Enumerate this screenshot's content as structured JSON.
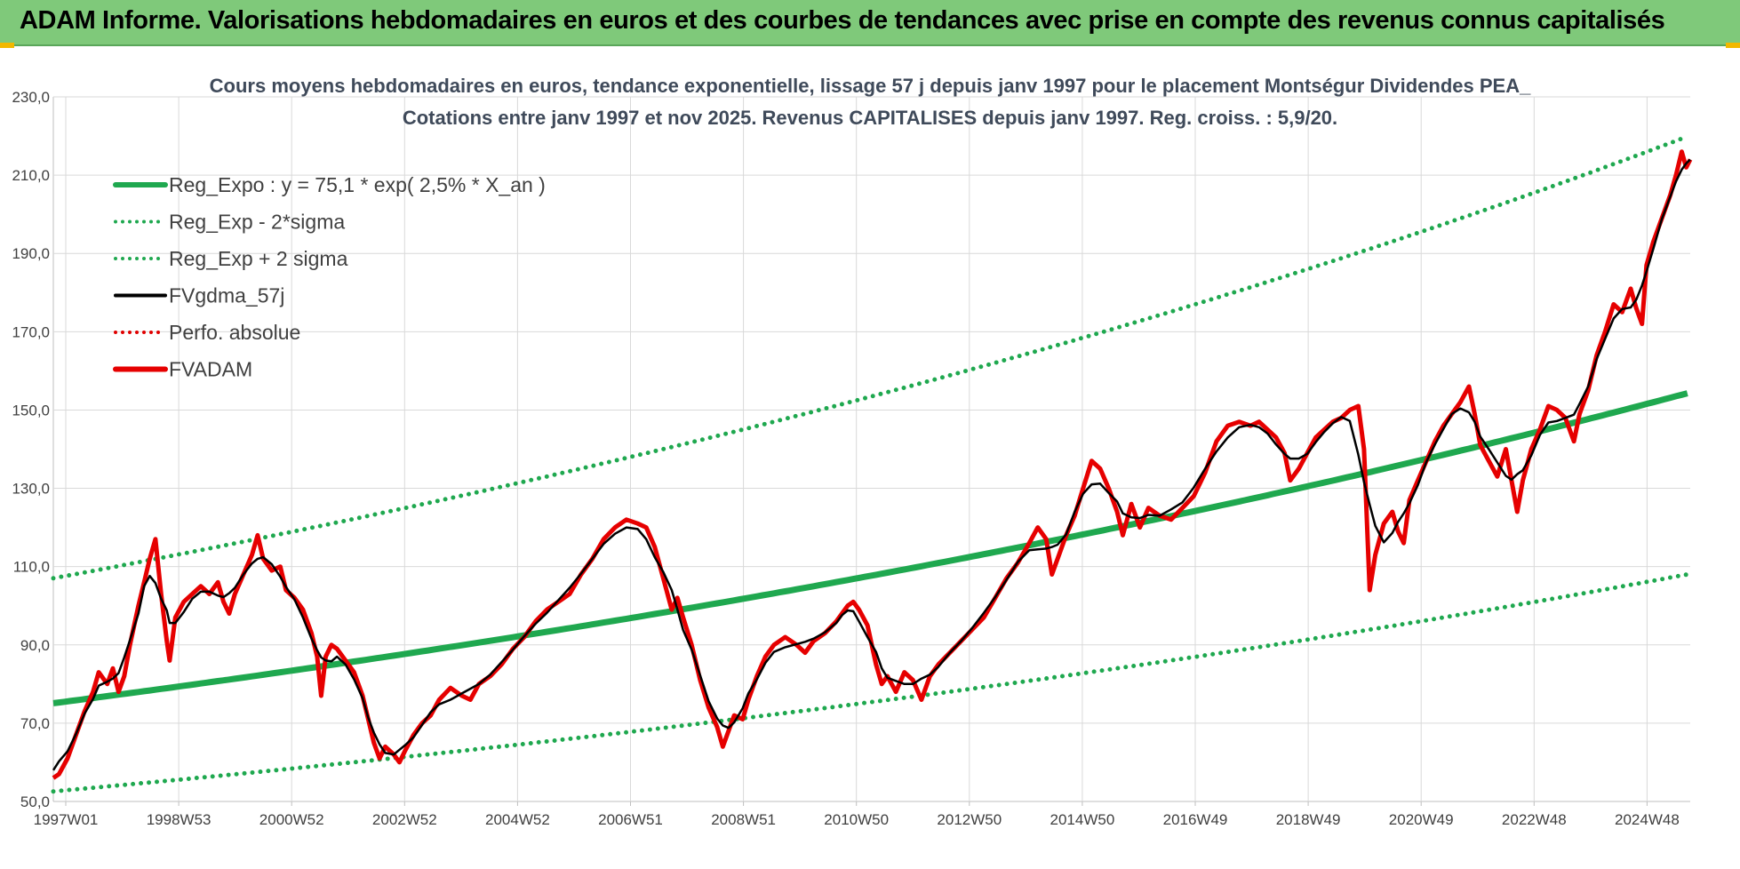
{
  "banner": {
    "title": "ADAM Informe. Valorisations hebdomadaires en euros et des courbes de tendances avec prise en compte des revenus connus capitalisés"
  },
  "chart_data": {
    "type": "line",
    "title": "Cours moyens hebdomadaires en euros, tendance exponentielle, lissage 57 j depuis janv 1997 pour le placement Montségur Dividendes PEA_",
    "subtitle": "Cotations entre janv 1997 et nov 2025. Revenus CAPITALISES depuis janv 1997. Reg. croiss. : 5,9/20.",
    "xlabel": "",
    "ylabel": "",
    "ylim": [
      50,
      230
    ],
    "yticks": [
      "50,0",
      "70,0",
      "90,0",
      "110,0",
      "130,0",
      "150,0",
      "170,0",
      "190,0",
      "210,0",
      "230,0"
    ],
    "xticks": [
      "1997W01",
      "1998W53",
      "2000W52",
      "2002W52",
      "2004W52",
      "2006W51",
      "2008W51",
      "2010W50",
      "2012W50",
      "2014W50",
      "2016W49",
      "2018W49",
      "2020W49",
      "2022W48",
      "2024W48"
    ],
    "xlim_years": [
      1997.0,
      2025.85
    ],
    "grid": true,
    "legend_position": "top-left",
    "series": [
      {
        "name": "Reg_Expo : y = 75,1 * exp( 2,5% *  X_an )",
        "color": "#1fa84f",
        "style": "solid-thick"
      },
      {
        "name": "Reg_Exp - 2*sigma",
        "color": "#1fa84f",
        "style": "dotted"
      },
      {
        "name": "Reg_Exp + 2 sigma",
        "color": "#1fa84f",
        "style": "dotted"
      },
      {
        "name": "FVgdma_57j",
        "color": "#000000",
        "style": "solid"
      },
      {
        "name": "Perfo. absolue",
        "color": "#e00000",
        "style": "dotted"
      },
      {
        "name": "FVADAM",
        "color": "#e60000",
        "style": "solid-thick"
      }
    ],
    "trend": {
      "a": 75.1,
      "rate": 0.025,
      "lower_factor": 0.7,
      "upper_factor": 1.425
    },
    "fvadam_points": [
      [
        1997.0,
        56
      ],
      [
        1997.1,
        57
      ],
      [
        1997.25,
        61
      ],
      [
        1997.4,
        67
      ],
      [
        1997.55,
        73
      ],
      [
        1997.7,
        78
      ],
      [
        1997.8,
        83
      ],
      [
        1997.95,
        80
      ],
      [
        1998.05,
        84
      ],
      [
        1998.15,
        78
      ],
      [
        1998.25,
        82
      ],
      [
        1998.35,
        90
      ],
      [
        1998.5,
        100
      ],
      [
        1998.6,
        106
      ],
      [
        1998.7,
        112
      ],
      [
        1998.8,
        117
      ],
      [
        1998.9,
        103
      ],
      [
        1999.0,
        91
      ],
      [
        1999.05,
        86
      ],
      [
        1999.15,
        97
      ],
      [
        1999.3,
        101
      ],
      [
        1999.45,
        103
      ],
      [
        1999.6,
        105
      ],
      [
        1999.75,
        103
      ],
      [
        1999.9,
        106
      ],
      [
        2000.0,
        101
      ],
      [
        2000.1,
        98
      ],
      [
        2000.2,
        103
      ],
      [
        2000.35,
        108
      ],
      [
        2000.5,
        113
      ],
      [
        2000.6,
        118
      ],
      [
        2000.7,
        112
      ],
      [
        2000.85,
        109
      ],
      [
        2001.0,
        110
      ],
      [
        2001.1,
        104
      ],
      [
        2001.25,
        102
      ],
      [
        2001.4,
        99
      ],
      [
        2001.55,
        93
      ],
      [
        2001.65,
        87
      ],
      [
        2001.72,
        77
      ],
      [
        2001.8,
        87
      ],
      [
        2001.9,
        90
      ],
      [
        2002.0,
        89
      ],
      [
        2002.15,
        86
      ],
      [
        2002.3,
        83
      ],
      [
        2002.45,
        77
      ],
      [
        2002.55,
        71
      ],
      [
        2002.65,
        65
      ],
      [
        2002.75,
        61
      ],
      [
        2002.85,
        64
      ],
      [
        2003.0,
        62
      ],
      [
        2003.1,
        60
      ],
      [
        2003.2,
        63
      ],
      [
        2003.35,
        67
      ],
      [
        2003.5,
        70
      ],
      [
        2003.65,
        72
      ],
      [
        2003.8,
        76
      ],
      [
        2004.0,
        79
      ],
      [
        2004.2,
        77
      ],
      [
        2004.35,
        76
      ],
      [
        2004.5,
        80
      ],
      [
        2004.7,
        82
      ],
      [
        2004.9,
        85
      ],
      [
        2005.1,
        89
      ],
      [
        2005.3,
        92
      ],
      [
        2005.5,
        96
      ],
      [
        2005.7,
        99
      ],
      [
        2005.9,
        101
      ],
      [
        2006.1,
        103
      ],
      [
        2006.3,
        108
      ],
      [
        2006.5,
        112
      ],
      [
        2006.7,
        117
      ],
      [
        2006.9,
        120
      ],
      [
        2007.1,
        122
      ],
      [
        2007.3,
        121
      ],
      [
        2007.45,
        120
      ],
      [
        2007.6,
        115
      ],
      [
        2007.75,
        107
      ],
      [
        2007.9,
        99
      ],
      [
        2008.0,
        102
      ],
      [
        2008.1,
        97
      ],
      [
        2008.25,
        90
      ],
      [
        2008.4,
        81
      ],
      [
        2008.55,
        74
      ],
      [
        2008.7,
        69
      ],
      [
        2008.8,
        64
      ],
      [
        2008.9,
        68
      ],
      [
        2009.0,
        72
      ],
      [
        2009.15,
        71
      ],
      [
        2009.25,
        76
      ],
      [
        2009.4,
        82
      ],
      [
        2009.55,
        87
      ],
      [
        2009.7,
        90
      ],
      [
        2009.9,
        92
      ],
      [
        2010.1,
        90
      ],
      [
        2010.25,
        88
      ],
      [
        2010.4,
        91
      ],
      [
        2010.6,
        93
      ],
      [
        2010.8,
        96
      ],
      [
        2010.9,
        98
      ],
      [
        2011.0,
        100
      ],
      [
        2011.1,
        101
      ],
      [
        2011.2,
        99
      ],
      [
        2011.35,
        95
      ],
      [
        2011.5,
        85
      ],
      [
        2011.6,
        80
      ],
      [
        2011.7,
        82
      ],
      [
        2011.85,
        78
      ],
      [
        2012.0,
        83
      ],
      [
        2012.15,
        81
      ],
      [
        2012.3,
        76
      ],
      [
        2012.45,
        82
      ],
      [
        2012.6,
        85
      ],
      [
        2012.8,
        88
      ],
      [
        2013.0,
        91
      ],
      [
        2013.2,
        94
      ],
      [
        2013.4,
        97
      ],
      [
        2013.6,
        102
      ],
      [
        2013.8,
        107
      ],
      [
        2014.0,
        111
      ],
      [
        2014.2,
        116
      ],
      [
        2014.35,
        120
      ],
      [
        2014.5,
        117
      ],
      [
        2014.6,
        108
      ],
      [
        2014.7,
        112
      ],
      [
        2014.85,
        118
      ],
      [
        2015.0,
        123
      ],
      [
        2015.15,
        130
      ],
      [
        2015.3,
        137
      ],
      [
        2015.45,
        135
      ],
      [
        2015.6,
        130
      ],
      [
        2015.75,
        124
      ],
      [
        2015.85,
        118
      ],
      [
        2016.0,
        126
      ],
      [
        2016.15,
        120
      ],
      [
        2016.3,
        125
      ],
      [
        2016.5,
        123
      ],
      [
        2016.7,
        122
      ],
      [
        2016.9,
        125
      ],
      [
        2017.1,
        128
      ],
      [
        2017.3,
        134
      ],
      [
        2017.5,
        142
      ],
      [
        2017.7,
        146
      ],
      [
        2017.9,
        147
      ],
      [
        2018.1,
        146
      ],
      [
        2018.25,
        147
      ],
      [
        2018.4,
        145
      ],
      [
        2018.55,
        143
      ],
      [
        2018.7,
        139
      ],
      [
        2018.8,
        132
      ],
      [
        2018.95,
        135
      ],
      [
        2019.1,
        139
      ],
      [
        2019.25,
        143
      ],
      [
        2019.4,
        145
      ],
      [
        2019.55,
        147
      ],
      [
        2019.7,
        148
      ],
      [
        2019.85,
        150
      ],
      [
        2020.0,
        151
      ],
      [
        2020.1,
        140
      ],
      [
        2020.2,
        104
      ],
      [
        2020.3,
        113
      ],
      [
        2020.45,
        121
      ],
      [
        2020.6,
        124
      ],
      [
        2020.7,
        119
      ],
      [
        2020.8,
        116
      ],
      [
        2020.9,
        127
      ],
      [
        2021.05,
        132
      ],
      [
        2021.2,
        137
      ],
      [
        2021.35,
        142
      ],
      [
        2021.5,
        146
      ],
      [
        2021.65,
        149
      ],
      [
        2021.8,
        152
      ],
      [
        2021.95,
        156
      ],
      [
        2022.05,
        149
      ],
      [
        2022.15,
        141
      ],
      [
        2022.3,
        137
      ],
      [
        2022.45,
        133
      ],
      [
        2022.6,
        140
      ],
      [
        2022.7,
        132
      ],
      [
        2022.8,
        124
      ],
      [
        2022.9,
        132
      ],
      [
        2023.05,
        140
      ],
      [
        2023.2,
        145
      ],
      [
        2023.35,
        151
      ],
      [
        2023.5,
        150
      ],
      [
        2023.65,
        148
      ],
      [
        2023.8,
        142
      ],
      [
        2023.9,
        149
      ],
      [
        2024.05,
        155
      ],
      [
        2024.2,
        164
      ],
      [
        2024.35,
        170
      ],
      [
        2024.5,
        177
      ],
      [
        2024.65,
        175
      ],
      [
        2024.8,
        181
      ],
      [
        2024.9,
        176
      ],
      [
        2025.0,
        172
      ],
      [
        2025.08,
        187
      ],
      [
        2025.2,
        193
      ],
      [
        2025.35,
        199
      ],
      [
        2025.5,
        205
      ],
      [
        2025.6,
        210
      ],
      [
        2025.7,
        216
      ],
      [
        2025.78,
        212
      ],
      [
        2025.85,
        214
      ]
    ]
  }
}
